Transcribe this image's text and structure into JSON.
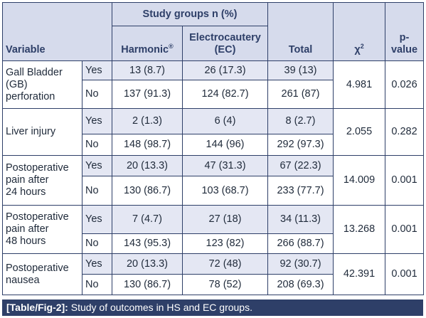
{
  "header": {
    "variable": "Variable",
    "study_groups": "Study groups n (%)",
    "harmonic": "Harmonic",
    "harmonic_mark": "®",
    "electrocautery_line1": "Electrocautery",
    "electrocautery_line2": "(EC)",
    "total": "Total",
    "chi_symbol": "χ",
    "chi_exp": "2",
    "p_line1": "p-",
    "p_line2": "value"
  },
  "rows": [
    {
      "variable": [
        "Gall Bladder",
        "(GB)",
        "perforation"
      ],
      "chi2": "4.981",
      "p": "0.026",
      "yes": {
        "label": "Yes",
        "harmonic": "13 (8.7)",
        "ec": "26 (17.3)",
        "total": "39 (13)"
      },
      "no": {
        "label": "No",
        "harmonic": "137 (91.3)",
        "ec": "124 (82.7)",
        "total": "261 (87)"
      }
    },
    {
      "variable": [
        "Liver injury"
      ],
      "chi2": "2.055",
      "p": "0.282",
      "yes": {
        "label": "Yes",
        "harmonic": "2 (1.3)",
        "ec": "6 (4)",
        "total": "8 (2.7)"
      },
      "no": {
        "label": "No",
        "harmonic": "148 (98.7)",
        "ec": "144 (96)",
        "total": "292 (97.3)"
      }
    },
    {
      "variable": [
        "Postoperative",
        "pain after",
        "24 hours"
      ],
      "chi2": "14.009",
      "p": "0.001",
      "yes": {
        "label": "Yes",
        "harmonic": "20 (13.3)",
        "ec": "47 (31.3)",
        "total": "67 (22.3)"
      },
      "no": {
        "label": "No",
        "harmonic": "130 (86.7)",
        "ec": "103 (68.7)",
        "total": "233 (77.7)"
      }
    },
    {
      "variable": [
        "Postoperative",
        "pain after",
        "48 hours"
      ],
      "chi2": "13.268",
      "p": "0.001",
      "yes": {
        "label": "Yes",
        "harmonic": "7 (4.7)",
        "ec": "27 (18)",
        "total": "34 (11.3)"
      },
      "no": {
        "label": "No",
        "harmonic": "143 (95.3)",
        "ec": "123 (82)",
        "total": "266 (88.7)"
      }
    },
    {
      "variable": [
        "Postoperative",
        "nausea"
      ],
      "chi2": "42.391",
      "p": "0.001",
      "yes": {
        "label": "Yes",
        "harmonic": "20 (13.3)",
        "ec": "72 (48)",
        "total": "92 (30.7)"
      },
      "no": {
        "label": "No",
        "harmonic": "130 (86.7)",
        "ec": "78 (52)",
        "total": "208 (69.3)"
      }
    }
  ],
  "caption": {
    "tag": "[Table/Fig-2]:",
    "text": " Study of outcomes in HS and EC groups."
  }
}
